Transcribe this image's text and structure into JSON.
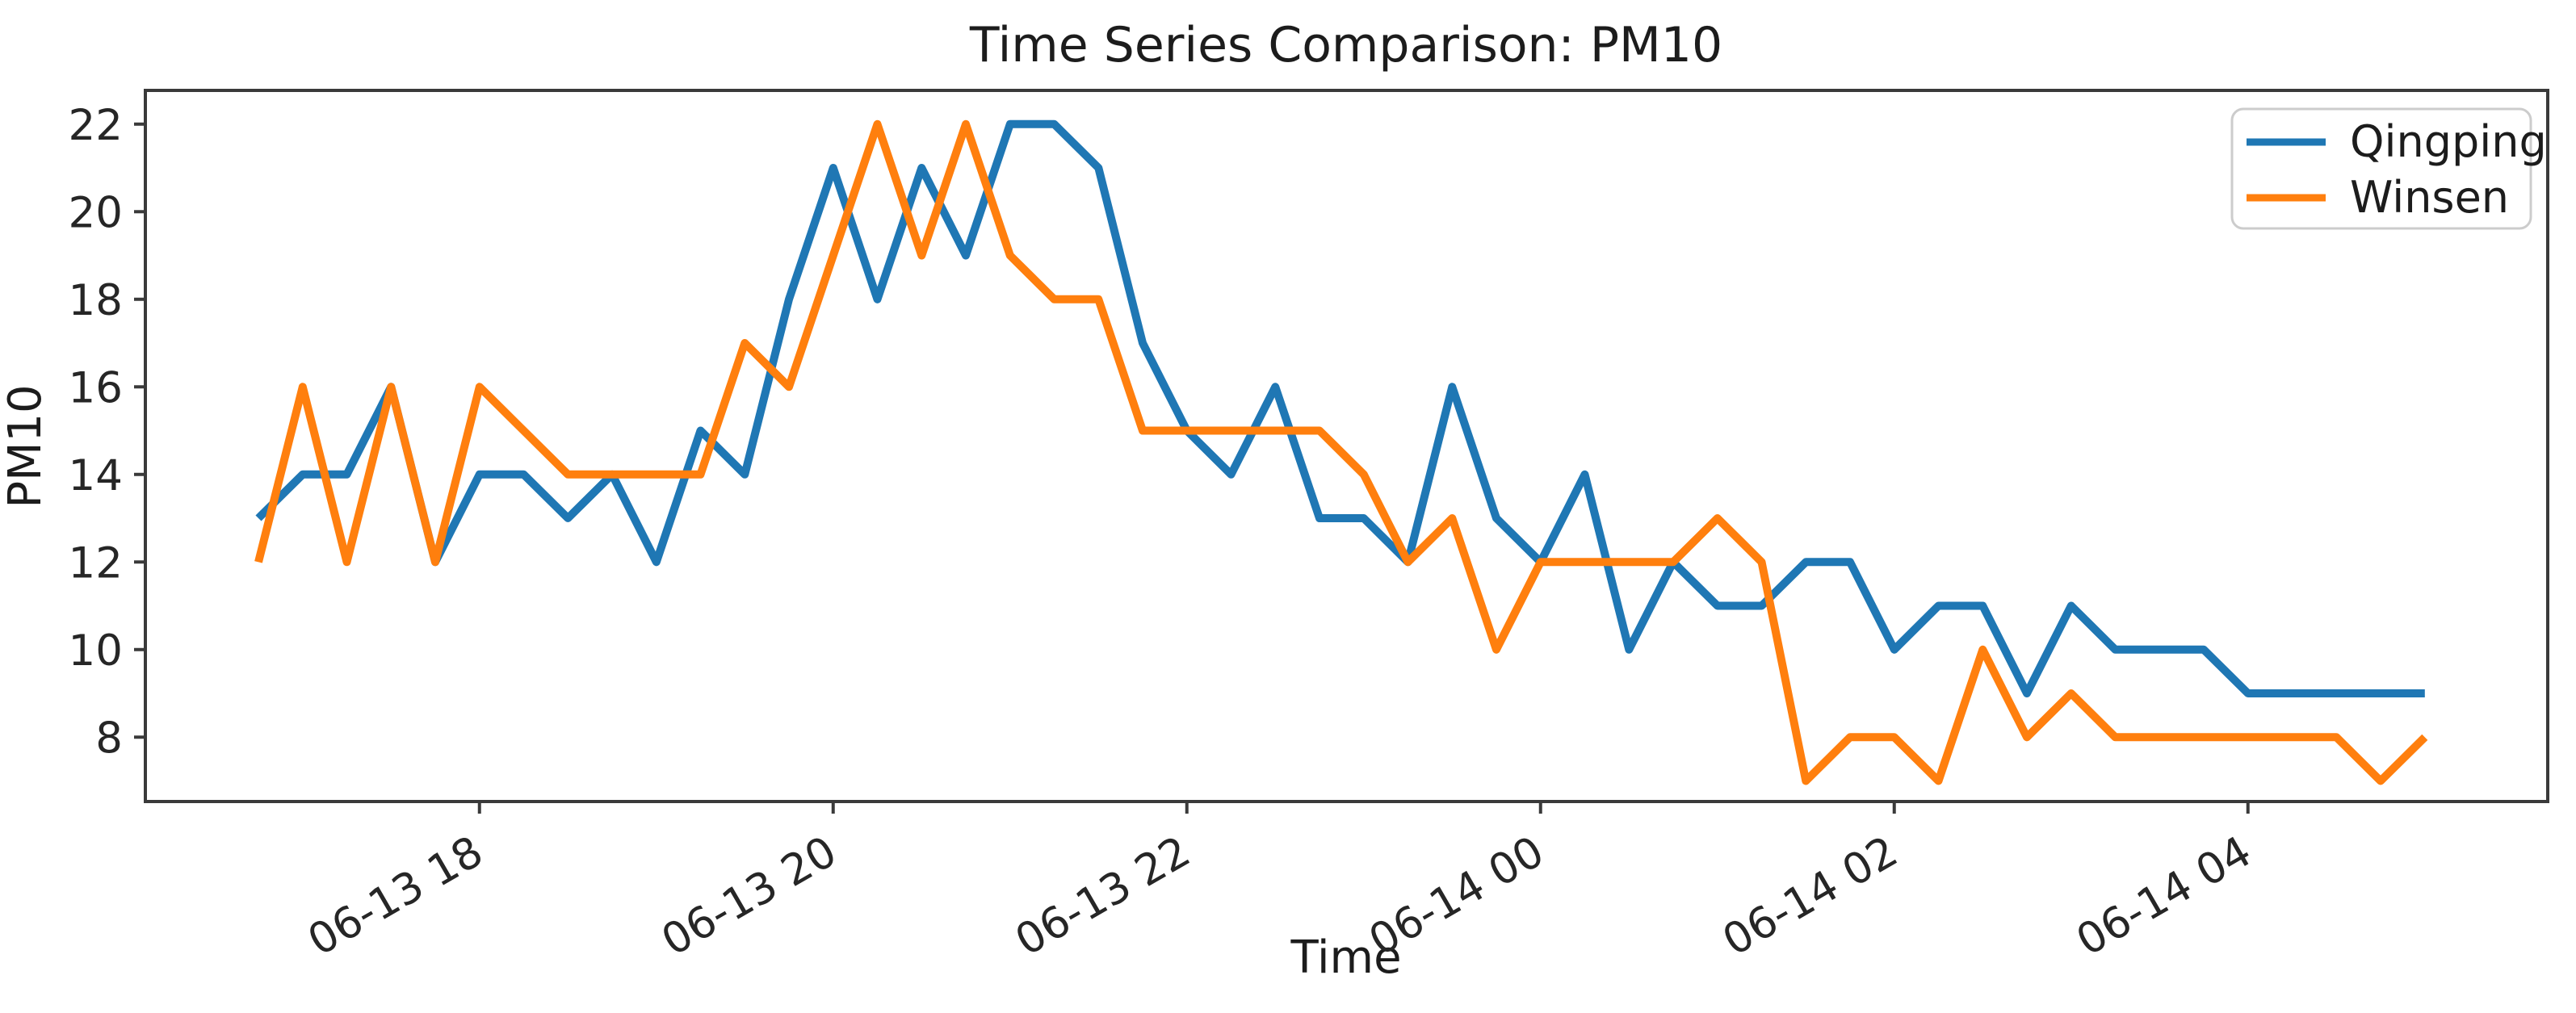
{
  "chart_data": {
    "type": "line",
    "title": "Time Series Comparison: PM10",
    "xlabel": "Time",
    "ylabel": "PM10",
    "grid": false,
    "legend": {
      "position": "upper right",
      "entries": [
        "Qingping",
        "Winsen"
      ]
    },
    "yticks": [
      8,
      10,
      12,
      14,
      16,
      18,
      20,
      22
    ],
    "ylim": [
      6.53,
      22.77
    ],
    "n_points": 50,
    "x_tick_indices": [
      5,
      13,
      21,
      29,
      37,
      45
    ],
    "x_tick_labels": [
      "06-13 18",
      "06-13 20",
      "06-13 22",
      "06-14 00",
      "06-14 02",
      "06-14 04"
    ],
    "series": [
      {
        "name": "Qingping",
        "color": "#1f77b4",
        "values": [
          13,
          14,
          14,
          16,
          12,
          14,
          14,
          13,
          14,
          12,
          15,
          14,
          18,
          21,
          18,
          21,
          19,
          22,
          22,
          21,
          17,
          15,
          14,
          16,
          13,
          13,
          12,
          16,
          13,
          12,
          14,
          10,
          12,
          11,
          11,
          12,
          12,
          10,
          11,
          11,
          9,
          11,
          10,
          10,
          10,
          9,
          9,
          9,
          9,
          9
        ]
      },
      {
        "name": "Winsen",
        "color": "#ff7f0e",
        "values": [
          12,
          16,
          12,
          16,
          12,
          16,
          15,
          14,
          14,
          14,
          14,
          17,
          16,
          19,
          22,
          19,
          22,
          19,
          18,
          18,
          15,
          15,
          15,
          15,
          15,
          14,
          12,
          13,
          10,
          12,
          12,
          12,
          12,
          13,
          12,
          7,
          8,
          8,
          7,
          10,
          8,
          9,
          8,
          8,
          8,
          8,
          8,
          8,
          7,
          8
        ]
      }
    ]
  },
  "style": {
    "spine_color": "#3a3a3a",
    "background": "#ffffff",
    "legend_border": "#cccccc"
  }
}
